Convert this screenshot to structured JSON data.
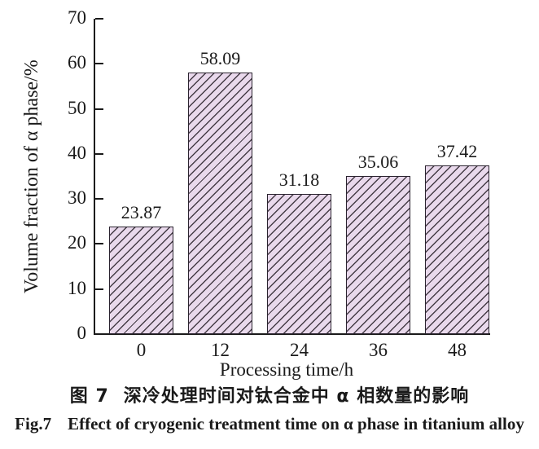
{
  "figure": {
    "captions": {
      "cn_label": "图 7",
      "cn_text": "深冷处理时间对钛合金中 α 相数量的影响",
      "en_label": "Fig.7",
      "en_text": "Effect of cryogenic treatment time on α phase in titanium alloy"
    }
  },
  "chart_data": {
    "type": "bar",
    "categories": [
      "0",
      "12",
      "24",
      "36",
      "48"
    ],
    "values": [
      23.87,
      58.09,
      31.18,
      35.06,
      37.42
    ],
    "value_labels": [
      "23.87",
      "58.09",
      "31.18",
      "35.06",
      "37.42"
    ],
    "title": "",
    "xlabel": "Processing time/h",
    "ylabel": "Volume fraction of α phase/%",
    "ylim": [
      0,
      70
    ],
    "ytick_step": 10,
    "grid": false,
    "legend": null,
    "bar_fill": "#e9d9ec",
    "bar_hatch": "diagonal-forward",
    "hatch_color": "#453c46",
    "bar_border": "#2b2430",
    "axis_color": "#1a1a1a",
    "text_color": "#1a1a1a"
  }
}
